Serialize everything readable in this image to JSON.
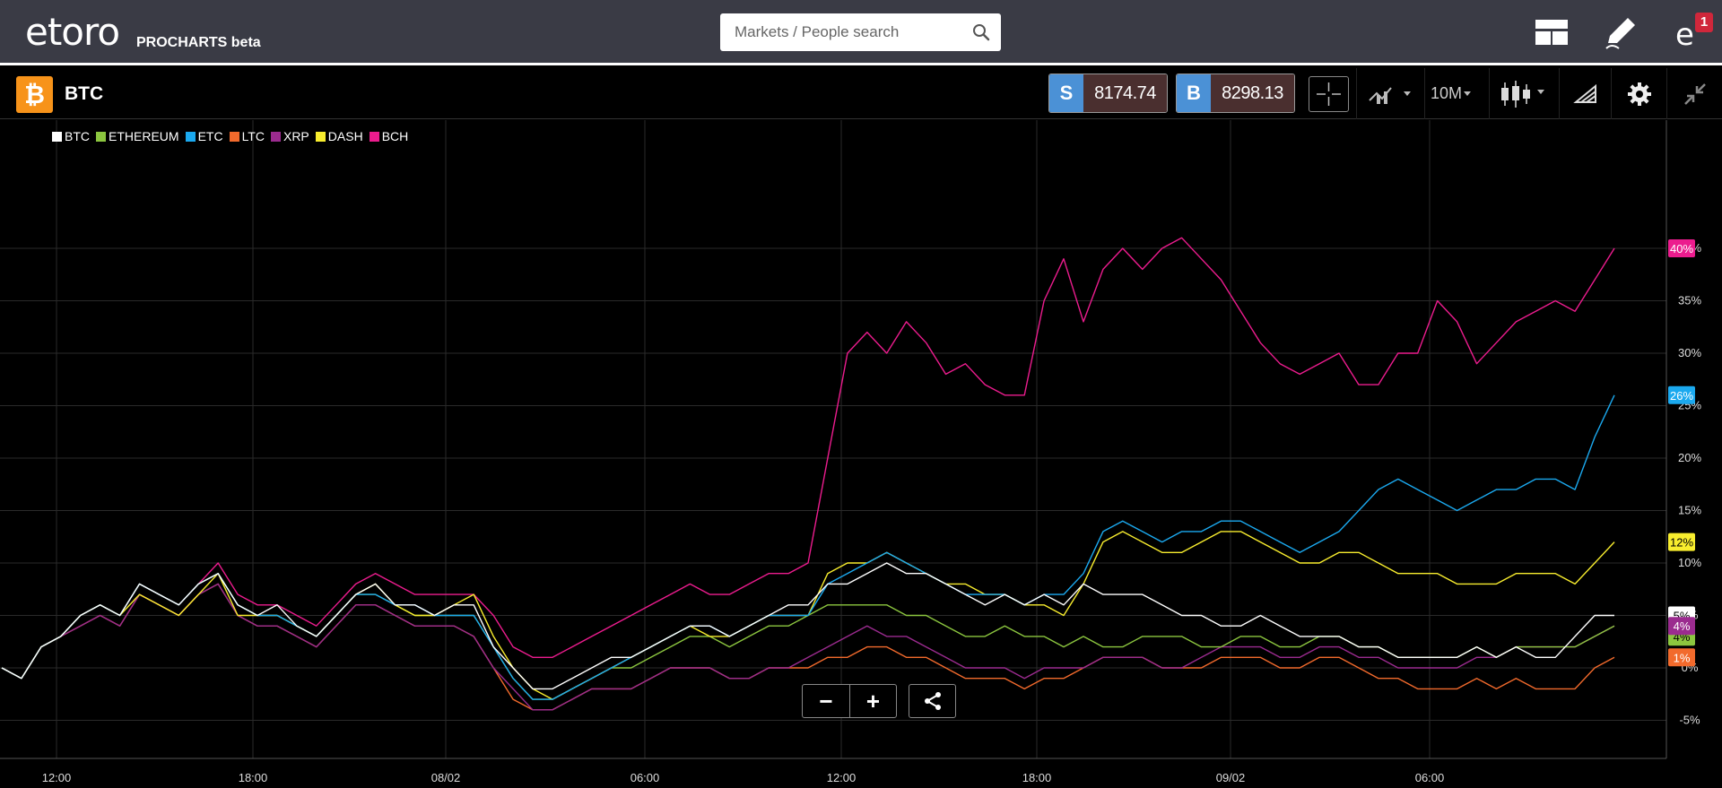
{
  "header": {
    "logo_text": "etoro",
    "logo_sub": "PROCHARTS beta",
    "search_placeholder": "Markets / People search",
    "notification_count": "1"
  },
  "instrument": {
    "name": "BTC",
    "icon": "bitcoin-icon",
    "sell_label": "S",
    "sell_price": "8174.74",
    "buy_label": "B",
    "buy_price": "8298.13",
    "timeframe": "10M"
  },
  "toolbar": {
    "icons": [
      "crosshair-icon",
      "chart-type-icon",
      "candlestick-icon",
      "drawing-tools-icon",
      "gear-icon",
      "collapse-icon"
    ]
  },
  "chart_data": {
    "type": "line",
    "legend_placement": "top-left",
    "grid": true,
    "y_unit": "%",
    "ylim": [
      -7,
      42
    ],
    "y_ticks": [
      "40%",
      "35%",
      "30%",
      "25%",
      "20%",
      "15%",
      "10%",
      "5%",
      "0%",
      "-5%"
    ],
    "x_ticks": [
      "12:00",
      "18:00",
      "08/02",
      "06:00",
      "12:00",
      "18:00",
      "09/02",
      "06:00"
    ],
    "series": [
      {
        "name": "BTC",
        "color": "#ffffff",
        "last_label": "5%",
        "values": [
          0,
          -1,
          2,
          3,
          5,
          6,
          5,
          8,
          7,
          6,
          8,
          9,
          6,
          5,
          6,
          4,
          3,
          5,
          7,
          8,
          6,
          6,
          5,
          6,
          6,
          2,
          0,
          -2,
          -2,
          -1,
          0,
          1,
          1,
          2,
          3,
          4,
          4,
          3,
          4,
          5,
          6,
          6,
          8,
          8,
          9,
          10,
          9,
          9,
          8,
          7,
          6,
          7,
          6,
          7,
          6,
          8,
          7,
          7,
          7,
          6,
          5,
          5,
          4,
          4,
          5,
          4,
          3,
          3,
          3,
          2,
          2,
          1,
          1,
          1,
          1,
          2,
          1,
          2,
          1,
          1,
          3,
          5,
          5
        ]
      },
      {
        "name": "ETHEREUM",
        "color": "#8cc63f",
        "last_label": "4%",
        "values": [
          0,
          -1,
          2,
          3,
          5,
          6,
          5,
          8,
          7,
          6,
          8,
          9,
          6,
          5,
          5,
          4,
          3,
          5,
          7,
          7,
          6,
          5,
          5,
          5,
          5,
          2,
          -1,
          -3,
          -3,
          -2,
          -1,
          0,
          0,
          1,
          2,
          3,
          3,
          2,
          3,
          4,
          4,
          5,
          6,
          6,
          6,
          6,
          5,
          5,
          4,
          3,
          3,
          4,
          3,
          3,
          2,
          3,
          2,
          2,
          3,
          3,
          3,
          2,
          2,
          3,
          3,
          2,
          2,
          3,
          3,
          2,
          2,
          1,
          1,
          1,
          1,
          2,
          1,
          2,
          2,
          2,
          2,
          3,
          4
        ]
      },
      {
        "name": "ETC",
        "color": "#1ba9ef",
        "last_label": "26%",
        "values": [
          0,
          -1,
          2,
          3,
          5,
          6,
          5,
          8,
          7,
          6,
          8,
          9,
          6,
          5,
          5,
          4,
          3,
          5,
          7,
          7,
          6,
          6,
          5,
          5,
          5,
          2,
          -1,
          -3,
          -3,
          -2,
          -1,
          0,
          1,
          2,
          3,
          4,
          4,
          3,
          4,
          5,
          5,
          5,
          8,
          9,
          10,
          11,
          10,
          9,
          8,
          7,
          7,
          7,
          6,
          7,
          7,
          9,
          13,
          14,
          13,
          12,
          13,
          13,
          14,
          14,
          13,
          12,
          11,
          12,
          13,
          15,
          17,
          18,
          17,
          16,
          15,
          16,
          17,
          17,
          18,
          18,
          17,
          22,
          26
        ]
      },
      {
        "name": "LTC",
        "color": "#f26a2c",
        "last_label": "1%",
        "values": [
          0,
          -1,
          2,
          3,
          4,
          5,
          4,
          7,
          6,
          5,
          7,
          8,
          5,
          4,
          4,
          3,
          2,
          4,
          6,
          6,
          5,
          4,
          4,
          4,
          3,
          0,
          -3,
          -4,
          -4,
          -3,
          -2,
          -2,
          -2,
          -1,
          0,
          0,
          0,
          -1,
          -1,
          0,
          0,
          0,
          1,
          1,
          2,
          2,
          1,
          1,
          0,
          -1,
          -1,
          -1,
          -2,
          -1,
          -1,
          0,
          1,
          1,
          1,
          0,
          0,
          0,
          1,
          1,
          1,
          0,
          0,
          1,
          1,
          0,
          -1,
          -1,
          -2,
          -2,
          -2,
          -1,
          -2,
          -1,
          -2,
          -2,
          -2,
          0,
          1
        ]
      },
      {
        "name": "XRP",
        "color": "#9b2b8f",
        "last_label": "4%",
        "values": [
          0,
          -1,
          2,
          3,
          4,
          5,
          4,
          7,
          6,
          5,
          7,
          8,
          5,
          4,
          4,
          3,
          2,
          4,
          6,
          6,
          5,
          4,
          4,
          4,
          3,
          0,
          -2,
          -4,
          -4,
          -3,
          -2,
          -2,
          -2,
          -1,
          0,
          0,
          0,
          -1,
          -1,
          0,
          0,
          1,
          2,
          3,
          4,
          3,
          3,
          2,
          1,
          0,
          0,
          0,
          -1,
          0,
          0,
          0,
          1,
          1,
          1,
          0,
          0,
          1,
          2,
          2,
          2,
          1,
          1,
          2,
          2,
          1,
          1,
          0,
          0,
          0,
          0,
          1,
          1,
          2,
          2,
          2,
          2,
          3,
          4
        ]
      },
      {
        "name": "DASH",
        "color": "#f8ed2e",
        "last_label": "12%",
        "values": [
          0,
          -1,
          2,
          3,
          5,
          6,
          5,
          7,
          6,
          5,
          7,
          9,
          5,
          5,
          5,
          4,
          3,
          5,
          7,
          8,
          6,
          5,
          5,
          6,
          7,
          3,
          0,
          -2,
          -3,
          -2,
          -1,
          0,
          1,
          2,
          3,
          4,
          3,
          3,
          4,
          5,
          5,
          5,
          9,
          10,
          10,
          11,
          10,
          9,
          8,
          8,
          7,
          7,
          6,
          6,
          5,
          8,
          12,
          13,
          12,
          11,
          11,
          12,
          13,
          13,
          12,
          11,
          10,
          10,
          11,
          11,
          10,
          9,
          9,
          9,
          8,
          8,
          8,
          9,
          9,
          9,
          8,
          10,
          12
        ]
      },
      {
        "name": "BCH",
        "color": "#ec1c8e",
        "last_label": "40%",
        "values": [
          0,
          -1,
          2,
          3,
          5,
          6,
          5,
          8,
          7,
          6,
          8,
          10,
          7,
          6,
          6,
          5,
          4,
          6,
          8,
          9,
          8,
          7,
          7,
          7,
          7,
          5,
          2,
          1,
          1,
          2,
          3,
          4,
          5,
          6,
          7,
          8,
          7,
          7,
          8,
          9,
          9,
          10,
          20,
          30,
          32,
          30,
          33,
          31,
          28,
          29,
          27,
          26,
          26,
          35,
          39,
          33,
          38,
          40,
          38,
          40,
          41,
          39,
          37,
          34,
          31,
          29,
          28,
          29,
          30,
          27,
          27,
          30,
          30,
          35,
          33,
          29,
          31,
          33,
          34,
          35,
          34,
          37,
          40
        ]
      }
    ]
  },
  "controls": {
    "zoom_out": "−",
    "zoom_in": "+"
  }
}
